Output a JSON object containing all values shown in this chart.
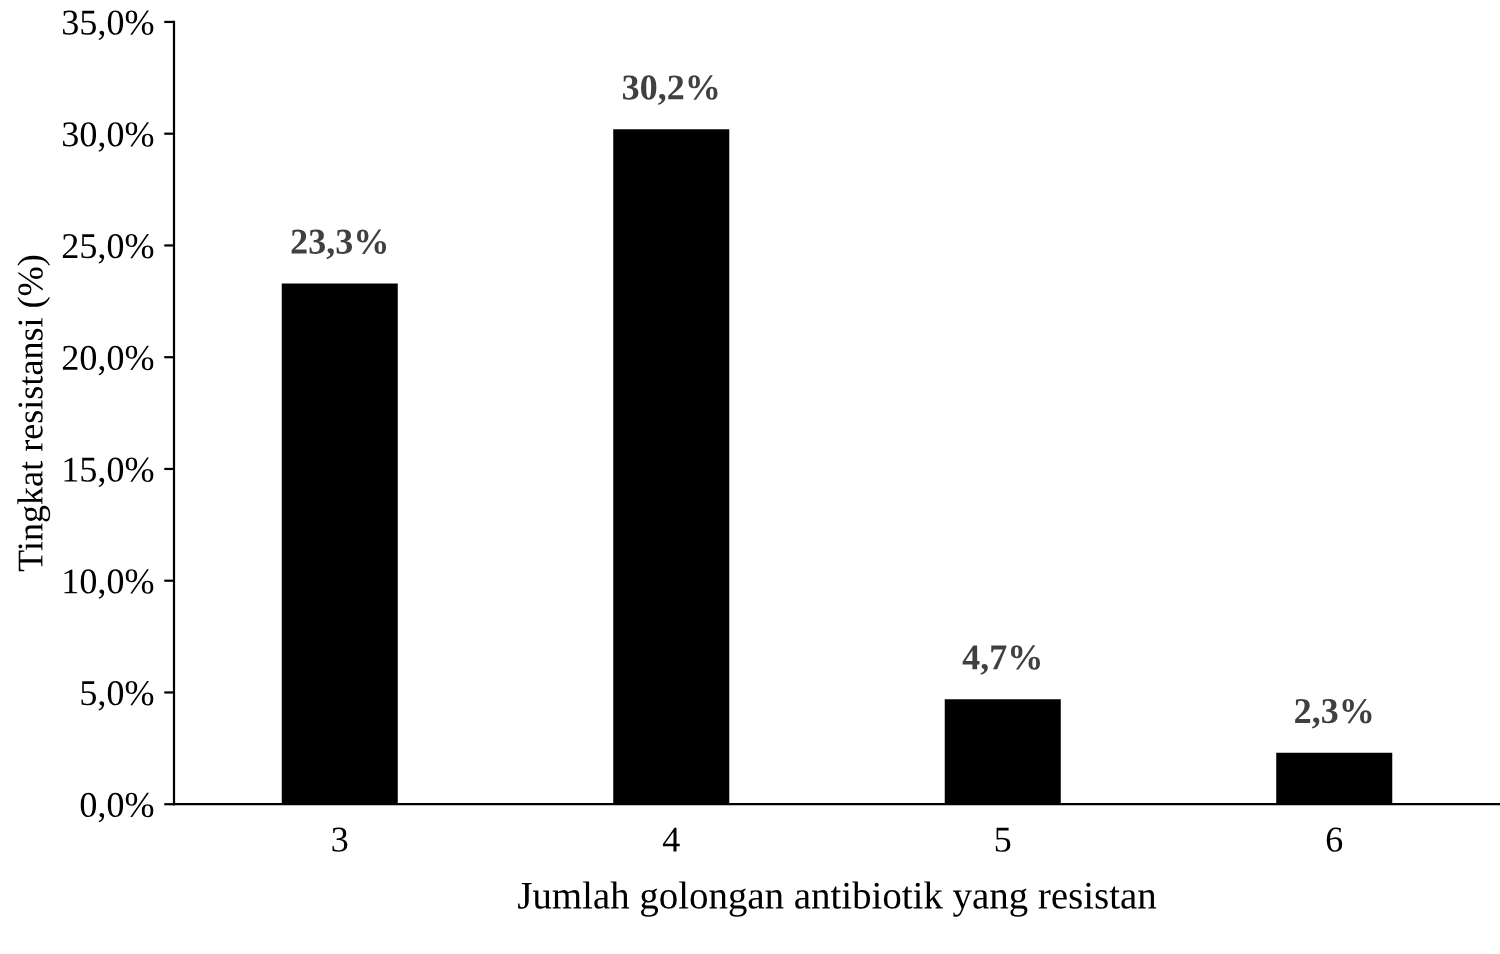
{
  "chart_data": {
    "type": "bar",
    "xlabel": "Jumlah golongan antibiotik yang resistan",
    "ylabel": "Tingkat resistansi (%)",
    "categories": [
      "3",
      "4",
      "5",
      "6"
    ],
    "values": [
      23.3,
      30.2,
      4.7,
      2.3
    ],
    "value_labels": [
      "23,3%",
      "30,2%",
      "4,7%",
      "2,3%"
    ],
    "color": "#000000",
    "ylim": [
      0,
      35
    ],
    "yticks": [
      {
        "value": 0,
        "label": "0,0%"
      },
      {
        "value": 5,
        "label": "5,0%"
      },
      {
        "value": 10,
        "label": "10,0%"
      },
      {
        "value": 15,
        "label": "15,0%"
      },
      {
        "value": 20,
        "label": "20,0%"
      },
      {
        "value": 25,
        "label": "25,0%"
      },
      {
        "value": 30,
        "label": "30,0%"
      },
      {
        "value": 35,
        "label": "35,0%"
      }
    ],
    "grid": false,
    "legend": false
  }
}
